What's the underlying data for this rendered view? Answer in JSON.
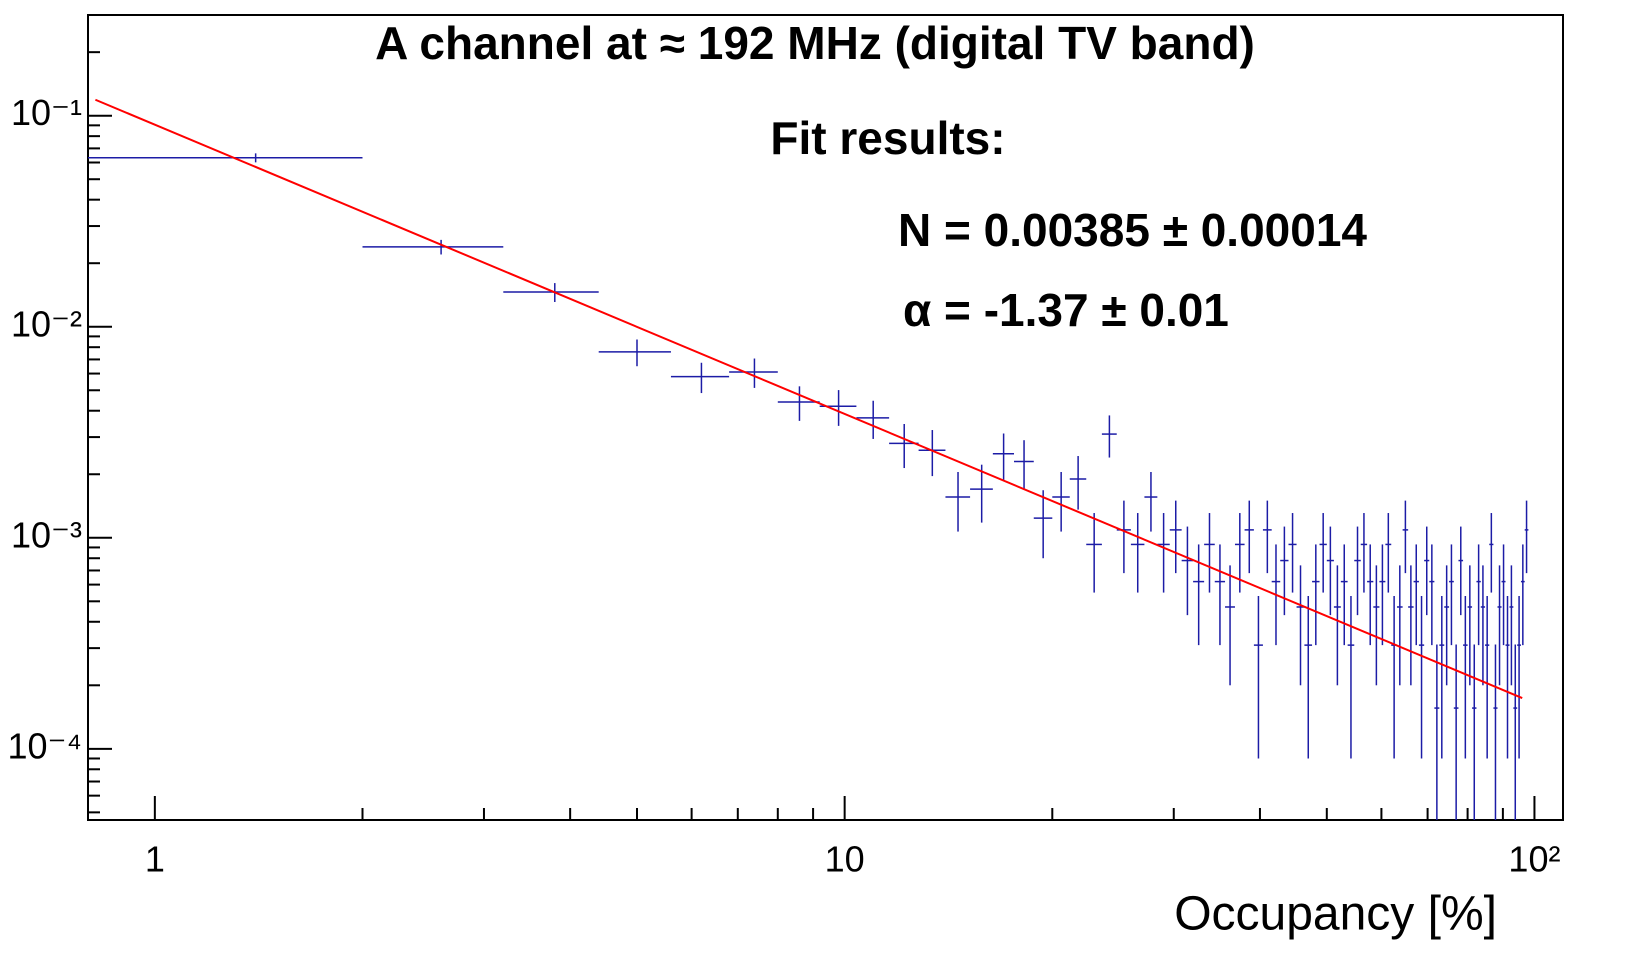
{
  "chart_data": {
    "type": "errorbar",
    "title": "A channel at ≈ 192 MHz (digital TV band)",
    "annotations": [
      "Fit results:",
      "N = 0.00385 ± 0.00014",
      "α = -1.37 ± 0.01"
    ],
    "x_label": "Occupancy [%]",
    "log_x": true,
    "log_y": true,
    "xlim": [
      0.8,
      110
    ],
    "ylim": [
      4.6e-05,
      0.3
    ],
    "xticks": [
      1,
      10,
      {
        "value": 100,
        "label": "10²"
      }
    ],
    "yticks": [
      {
        "value": 0.0001,
        "label": "10⁻⁴"
      },
      {
        "value": 0.001,
        "label": "10⁻³"
      },
      {
        "value": 0.01,
        "label": "10⁻²"
      },
      {
        "value": 0.1,
        "label": "10⁻¹"
      }
    ],
    "xminorticks": [
      2,
      3,
      4,
      5,
      6,
      7,
      8,
      9,
      20,
      30,
      40,
      50,
      60,
      70,
      80,
      90
    ],
    "yminorticks": [
      5e-05,
      6e-05,
      7e-05,
      8e-05,
      9e-05,
      0.0002,
      0.0003,
      0.0004,
      0.0005,
      0.0006,
      0.0007,
      0.0008,
      0.0009,
      0.002,
      0.003,
      0.004,
      0.005,
      0.006,
      0.007,
      0.008,
      0.009,
      0.02,
      0.03,
      0.04,
      0.05,
      0.06,
      0.07,
      0.08,
      0.09,
      0.2,
      0.3
    ],
    "color": "#1c1ca6",
    "xerr": 0.6,
    "x": [
      1.4,
      2.6,
      3.8,
      5.0,
      6.2,
      7.4,
      8.6,
      9.8,
      11.0,
      12.2,
      13.4,
      14.6,
      15.8,
      17.0,
      18.2,
      19.4,
      20.6,
      21.8,
      23.0,
      24.2,
      25.4,
      26.6,
      27.8,
      29.0,
      30.2,
      31.4,
      32.6,
      33.8,
      35.0,
      36.2,
      37.4,
      38.6,
      39.8,
      41.0,
      42.2,
      43.4,
      44.6,
      45.8,
      47.0,
      48.2,
      49.4,
      50.6,
      51.8,
      53.0,
      54.2,
      55.4,
      56.6,
      57.8,
      59.0,
      60.2,
      61.4,
      62.6,
      63.8,
      65.0,
      66.2,
      67.4,
      68.6,
      69.8,
      71.0,
      72.2,
      73.4,
      74.6,
      75.8,
      77.0,
      78.2,
      79.4,
      80.6,
      81.8,
      83.0,
      84.2,
      85.4,
      86.6,
      87.8,
      89.0,
      90.2,
      91.4,
      92.6,
      93.8,
      95.0,
      96.2,
      97.4
    ],
    "values": [
      0.0632,
      0.0239,
      0.0146,
      0.0076,
      0.0058,
      0.0061,
      0.0044,
      0.0042,
      0.0037,
      0.0028,
      0.0026,
      0.00156,
      0.0017,
      0.0025,
      0.0023,
      0.00124,
      0.00156,
      0.0019,
      0.00093,
      0.0031,
      0.00109,
      0.00093,
      0.00156,
      0.00093,
      0.00109,
      0.00078,
      0.00062,
      0.00093,
      0.00062,
      0.00047,
      0.00093,
      0.00109,
      0.00031,
      0.00109,
      0.00062,
      0.00078,
      0.00093,
      0.00047,
      0.00031,
      0.00062,
      0.00093,
      0.00078,
      0.00047,
      0.00062,
      0.00031,
      0.00078,
      0.00093,
      0.00062,
      0.00047,
      0.00062,
      0.00093,
      0.00031,
      0.00047,
      0.00109,
      0.00047,
      0.00062,
      0.00031,
      0.00078,
      0.00062,
      0.000156,
      0.00031,
      0.00047,
      0.00062,
      0.000156,
      0.00078,
      0.00031,
      0.00047,
      0.000156,
      0.00062,
      0.00047,
      0.00031,
      0.00093,
      0.000156,
      0.00047,
      0.00062,
      0.00031,
      0.00047,
      0.000156,
      0.00031,
      0.00062,
      0.00109
    ],
    "errors": [
      0.0031,
      0.0019,
      0.0015,
      0.0011,
      0.00095,
      0.00097,
      0.00082,
      0.00081,
      0.00076,
      0.00066,
      0.00064,
      0.00049,
      0.00052,
      0.00062,
      0.0006,
      0.00044,
      0.00049,
      0.00054,
      0.00038,
      0.0007,
      0.00041,
      0.00038,
      0.00049,
      0.00038,
      0.00041,
      0.00035,
      0.00031,
      0.00038,
      0.00031,
      0.00027,
      0.00038,
      0.00041,
      0.00022,
      0.00041,
      0.00031,
      0.00035,
      0.00038,
      0.00027,
      0.00022,
      0.00031,
      0.00038,
      0.00035,
      0.00027,
      0.00031,
      0.00022,
      0.00035,
      0.00038,
      0.00031,
      0.00027,
      0.00031,
      0.00038,
      0.00022,
      0.00027,
      0.00041,
      0.00027,
      0.00031,
      0.00022,
      0.00035,
      0.00031,
      0.000156,
      0.00022,
      0.00027,
      0.00031,
      0.000156,
      0.00035,
      0.00022,
      0.00027,
      0.000156,
      0.00031,
      0.00027,
      0.00022,
      0.00038,
      0.000156,
      0.00027,
      0.00031,
      0.00022,
      0.00027,
      0.000156,
      0.00022,
      0.00031,
      0.00041
    ],
    "fit": {
      "color": "#ff0000",
      "x": [
        0.82,
        96
      ],
      "values": [
        0.119,
        0.000174
      ]
    }
  }
}
